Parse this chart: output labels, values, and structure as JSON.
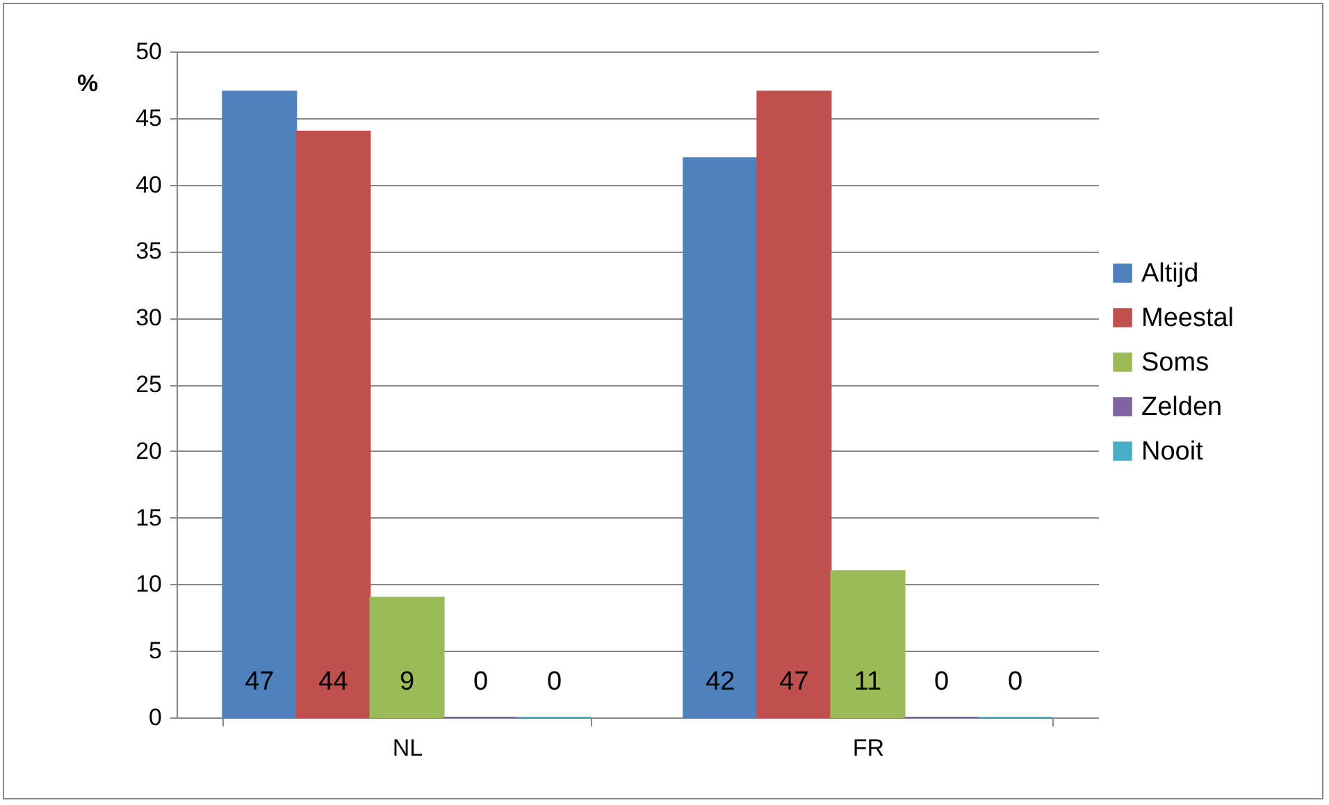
{
  "chart_data": {
    "type": "bar",
    "ylabel": "%",
    "categories": [
      "NL",
      "FR"
    ],
    "series": [
      {
        "name": "Altijd",
        "color": "#4f81bd",
        "values": [
          47,
          42
        ]
      },
      {
        "name": "Meestal",
        "color": "#c0504d",
        "values": [
          44,
          47
        ]
      },
      {
        "name": "Soms",
        "color": "#9bbb59",
        "values": [
          9,
          11
        ]
      },
      {
        "name": "Zelden",
        "color": "#8064a2",
        "values": [
          0,
          0
        ]
      },
      {
        "name": "Nooit",
        "color": "#4bacc6",
        "values": [
          0,
          0
        ]
      }
    ],
    "ylim": [
      0,
      50
    ],
    "yticks": [
      0,
      5,
      10,
      15,
      20,
      25,
      30,
      35,
      40,
      45,
      50
    ],
    "grid": "y",
    "legend": "right",
    "data_labels": true
  }
}
